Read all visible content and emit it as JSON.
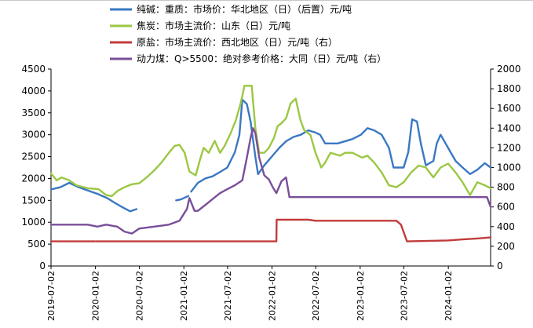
{
  "chart_data": {
    "type": "line",
    "series": [
      {
        "name": "纯碱：重质：市场价：华北地区（日）（后置）元/吨",
        "axis": "left",
        "color": "#3a78c2",
        "points": [
          [
            "2019-07-02",
            1750
          ],
          [
            "2019-08-10",
            1800
          ],
          [
            "2019-09-15",
            1900
          ],
          [
            "2019-10-25",
            1800
          ],
          [
            "2019-12-15",
            1700
          ],
          [
            "2020-01-10",
            1650
          ],
          [
            "2020-02-20",
            1550
          ],
          [
            "2020-03-20",
            1450
          ],
          [
            "2020-04-20",
            1350
          ],
          [
            "2020-05-25",
            1250
          ],
          [
            "2020-06-20",
            1300
          ],
          [
            "2020-06-21",
            null
          ],
          [
            "2020-12-01",
            1500
          ],
          [
            "2020-12-20",
            1520
          ],
          [
            "2021-01-20",
            1600
          ],
          [
            "2021-01-21",
            null
          ],
          [
            "2021-02-01",
            1700
          ],
          [
            "2021-03-01",
            1900
          ],
          [
            "2021-04-01",
            2000
          ],
          [
            "2021-05-01",
            2050
          ],
          [
            "2021-06-01",
            2150
          ],
          [
            "2021-07-01",
            2250
          ],
          [
            "2021-08-01",
            2600
          ],
          [
            "2021-08-20",
            3000
          ],
          [
            "2021-09-01",
            3800
          ],
          [
            "2021-09-20",
            3700
          ],
          [
            "2021-10-05",
            3300
          ],
          [
            "2021-10-25",
            2500
          ],
          [
            "2021-11-05",
            2100
          ],
          [
            "2021-12-01",
            2300
          ],
          [
            "2022-01-01",
            2500
          ],
          [
            "2022-02-01",
            2700
          ],
          [
            "2022-03-01",
            2850
          ],
          [
            "2022-04-01",
            2950
          ],
          [
            "2022-05-01",
            3000
          ],
          [
            "2022-06-01",
            3100
          ],
          [
            "2022-07-01",
            3050
          ],
          [
            "2022-07-20",
            3000
          ],
          [
            "2022-08-10",
            2800
          ],
          [
            "2022-10-01",
            2800
          ],
          [
            "2022-12-01",
            2900
          ],
          [
            "2023-01-05",
            3000
          ],
          [
            "2023-02-01",
            3150
          ],
          [
            "2023-03-01",
            3100
          ],
          [
            "2023-04-01",
            3000
          ],
          [
            "2023-05-01",
            2700
          ],
          [
            "2023-05-20",
            2250
          ],
          [
            "2023-07-01",
            2250
          ],
          [
            "2023-07-20",
            2600
          ],
          [
            "2023-08-05",
            3350
          ],
          [
            "2023-08-25",
            3300
          ],
          [
            "2023-09-10",
            2800
          ],
          [
            "2023-10-01",
            2300
          ],
          [
            "2023-11-01",
            2400
          ],
          [
            "2023-11-15",
            2800
          ],
          [
            "2023-12-01",
            3000
          ],
          [
            "2024-01-01",
            2700
          ],
          [
            "2024-02-01",
            2400
          ],
          [
            "2024-03-01",
            2250
          ],
          [
            "2024-04-01",
            2100
          ],
          [
            "2024-05-01",
            2200
          ],
          [
            "2024-06-01",
            2350
          ],
          [
            "2024-06-25",
            2250
          ]
        ]
      },
      {
        "name": "焦炭：市场主流价：山东（日）元/吨",
        "axis": "right",
        "color": "#9bc742",
        "points": [
          [
            "2019-07-02",
            940
          ],
          [
            "2019-07-25",
            870
          ],
          [
            "2019-08-15",
            900
          ],
          [
            "2019-09-15",
            870
          ],
          [
            "2019-10-15",
            820
          ],
          [
            "2019-12-01",
            790
          ],
          [
            "2020-01-15",
            780
          ],
          [
            "2020-02-15",
            720
          ],
          [
            "2020-03-10",
            710
          ],
          [
            "2020-04-01",
            760
          ],
          [
            "2020-05-01",
            800
          ],
          [
            "2020-06-01",
            830
          ],
          [
            "2020-07-01",
            840
          ],
          [
            "2020-08-01",
            900
          ],
          [
            "2020-09-01",
            970
          ],
          [
            "2020-10-01",
            1050
          ],
          [
            "2020-11-01",
            1150
          ],
          [
            "2020-11-25",
            1220
          ],
          [
            "2020-12-15",
            1230
          ],
          [
            "2021-01-05",
            1150
          ],
          [
            "2021-01-25",
            960
          ],
          [
            "2021-02-20",
            920
          ],
          [
            "2021-03-10",
            1080
          ],
          [
            "2021-03-25",
            1200
          ],
          [
            "2021-04-15",
            1150
          ],
          [
            "2021-05-10",
            1270
          ],
          [
            "2021-06-01",
            1150
          ],
          [
            "2021-06-20",
            1220
          ],
          [
            "2021-07-15",
            1350
          ],
          [
            "2021-08-05",
            1480
          ],
          [
            "2021-08-25",
            1650
          ],
          [
            "2021-09-10",
            1830
          ],
          [
            "2021-10-10",
            1830
          ],
          [
            "2021-10-25",
            1400
          ],
          [
            "2021-11-10",
            1150
          ],
          [
            "2021-12-01",
            1150
          ],
          [
            "2021-12-20",
            1200
          ],
          [
            "2022-01-10",
            1300
          ],
          [
            "2022-01-25",
            1420
          ],
          [
            "2022-02-10",
            1450
          ],
          [
            "2022-03-01",
            1500
          ],
          [
            "2022-03-20",
            1650
          ],
          [
            "2022-04-10",
            1700
          ],
          [
            "2022-04-30",
            1480
          ],
          [
            "2022-05-15",
            1380
          ],
          [
            "2022-06-10",
            1330
          ],
          [
            "2022-07-01",
            1150
          ],
          [
            "2022-07-25",
            1000
          ],
          [
            "2022-08-10",
            1050
          ],
          [
            "2022-09-01",
            1150
          ],
          [
            "2022-10-10",
            1120
          ],
          [
            "2022-11-01",
            1150
          ],
          [
            "2022-12-01",
            1150
          ],
          [
            "2023-01-10",
            1100
          ],
          [
            "2023-02-01",
            1120
          ],
          [
            "2023-03-01",
            1050
          ],
          [
            "2023-04-01",
            950
          ],
          [
            "2023-05-01",
            820
          ],
          [
            "2023-06-01",
            800
          ],
          [
            "2023-07-01",
            850
          ],
          [
            "2023-08-01",
            950
          ],
          [
            "2023-09-01",
            1020
          ],
          [
            "2023-10-01",
            1000
          ],
          [
            "2023-11-01",
            900
          ],
          [
            "2023-12-01",
            1000
          ],
          [
            "2024-01-01",
            1040
          ],
          [
            "2024-02-01",
            950
          ],
          [
            "2024-03-01",
            850
          ],
          [
            "2024-04-01",
            720
          ],
          [
            "2024-05-01",
            850
          ],
          [
            "2024-06-01",
            820
          ],
          [
            "2024-06-25",
            790
          ]
        ]
      },
      {
        "name": "原盐：市场主流价：西北地区（日）元/吨（右）",
        "axis": "right",
        "color": "#c23b3b",
        "points": [
          [
            "2019-07-02",
            250
          ],
          [
            "2019-12-31",
            250
          ],
          [
            "2020-01-01",
            null
          ],
          [
            "2020-01-05",
            250
          ],
          [
            "2022-01-20",
            250
          ],
          [
            "2022-01-21",
            470
          ],
          [
            "2022-06-01",
            470
          ],
          [
            "2022-07-01",
            460
          ],
          [
            "2023-06-01",
            460
          ],
          [
            "2023-06-20",
            420
          ],
          [
            "2023-07-15",
            250
          ],
          [
            "2024-01-01",
            260
          ],
          [
            "2024-03-01",
            270
          ],
          [
            "2024-05-01",
            280
          ],
          [
            "2024-06-25",
            290
          ]
        ]
      },
      {
        "name": "动力煤：Q>5500：绝对参考价格：大同（日）元/吨（右）",
        "axis": "right",
        "color": "#7a4e9a",
        "points": [
          [
            "2019-07-02",
            420
          ],
          [
            "2019-09-01",
            420
          ],
          [
            "2019-12-01",
            420
          ],
          [
            "2020-01-10",
            400
          ],
          [
            "2020-02-15",
            420
          ],
          [
            "2020-04-01",
            400
          ],
          [
            "2020-05-01",
            350
          ],
          [
            "2020-06-01",
            330
          ],
          [
            "2020-07-01",
            380
          ],
          [
            "2020-09-01",
            400
          ],
          [
            "2020-11-01",
            420
          ],
          [
            "2020-12-15",
            460
          ],
          [
            "2021-01-15",
            580
          ],
          [
            "2021-01-25",
            690
          ],
          [
            "2021-02-15",
            560
          ],
          [
            "2021-03-01",
            560
          ],
          [
            "2021-04-01",
            620
          ],
          [
            "2021-05-01",
            680
          ],
          [
            "2021-06-01",
            740
          ],
          [
            "2021-07-01",
            780
          ],
          [
            "2021-08-01",
            820
          ],
          [
            "2021-09-01",
            870
          ],
          [
            "2021-09-20",
            1100
          ],
          [
            "2021-10-05",
            1300
          ],
          [
            "2021-10-15",
            1400
          ],
          [
            "2021-10-25",
            1350
          ],
          [
            "2021-11-10",
            1100
          ],
          [
            "2021-12-01",
            920
          ],
          [
            "2021-12-20",
            880
          ],
          [
            "2022-01-05",
            800
          ],
          [
            "2022-01-20",
            740
          ],
          [
            "2022-02-10",
            860
          ],
          [
            "2022-03-01",
            900
          ],
          [
            "2022-03-15",
            700
          ],
          [
            "2022-04-01",
            700
          ],
          [
            "2024-06-10",
            700
          ],
          [
            "2024-06-25",
            600
          ]
        ]
      }
    ],
    "y_left": {
      "min": 0,
      "max": 4500,
      "ticks": [
        "0",
        "500",
        "1000",
        "1500",
        "2000",
        "2500",
        "3000",
        "3500",
        "4000",
        "4500"
      ]
    },
    "y_right": {
      "min": 0,
      "max": 2000,
      "ticks": [
        "0",
        "200",
        "400",
        "600",
        "800",
        "1000",
        "1200",
        "1400",
        "1600",
        "1800",
        "2000"
      ]
    },
    "x_range": [
      "2019-07-02",
      "2024-06-25"
    ],
    "x_ticks": [
      "2019-07-02",
      "2020-01-02",
      "2020-07-02",
      "2021-01-02",
      "2021-07-02",
      "2022-01-02",
      "2022-07-02",
      "2023-01-02",
      "2023-07-02",
      "2024-01-02"
    ],
    "legend_position": "top-center"
  }
}
